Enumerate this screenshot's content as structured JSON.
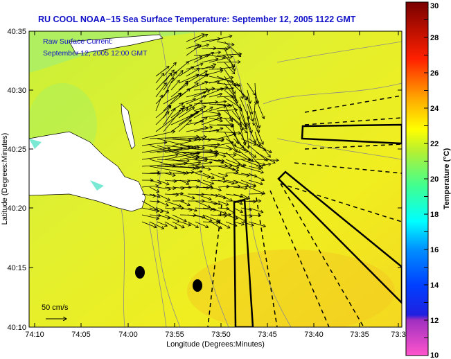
{
  "title": "RU COOL  NOAA−15  Sea Surface Temperature:  September 12, 2005 1122 GMT",
  "legend": {
    "line1": "Raw Surface Current:",
    "line2": "September 12, 2005 12:00 GMT",
    "scale_label": "50 cm/s"
  },
  "axes": {
    "xlabel": "Longitude (Degrees:Minutes)",
    "ylabel": "Latitude (Degrees:Minutes)",
    "xticks": [
      "74:10",
      "74:05",
      "74:00",
      "73:55",
      "73:50",
      "73:45",
      "73:40",
      "73:35",
      "73:3"
    ],
    "yticks": [
      "40:35",
      "40:30",
      "40:25",
      "40:20",
      "40:15",
      "40:10"
    ]
  },
  "colorbar": {
    "label": "Temperature (°C)",
    "ticks": [
      "30",
      "28",
      "26",
      "24",
      "22",
      "20",
      "18",
      "16",
      "14",
      "12",
      "10"
    ],
    "range": [
      10,
      30
    ],
    "colors": [
      "#ff44cc",
      "#9933cc",
      "#0000ff",
      "#0077ff",
      "#00ffff",
      "#33ff99",
      "#b0f040",
      "#ffff00",
      "#ffa000",
      "#ff2000",
      "#d00000",
      "#780000"
    ]
  },
  "colors": {
    "sea": "#d8f030",
    "land": "#ffffff",
    "title": "#1010c8"
  }
}
